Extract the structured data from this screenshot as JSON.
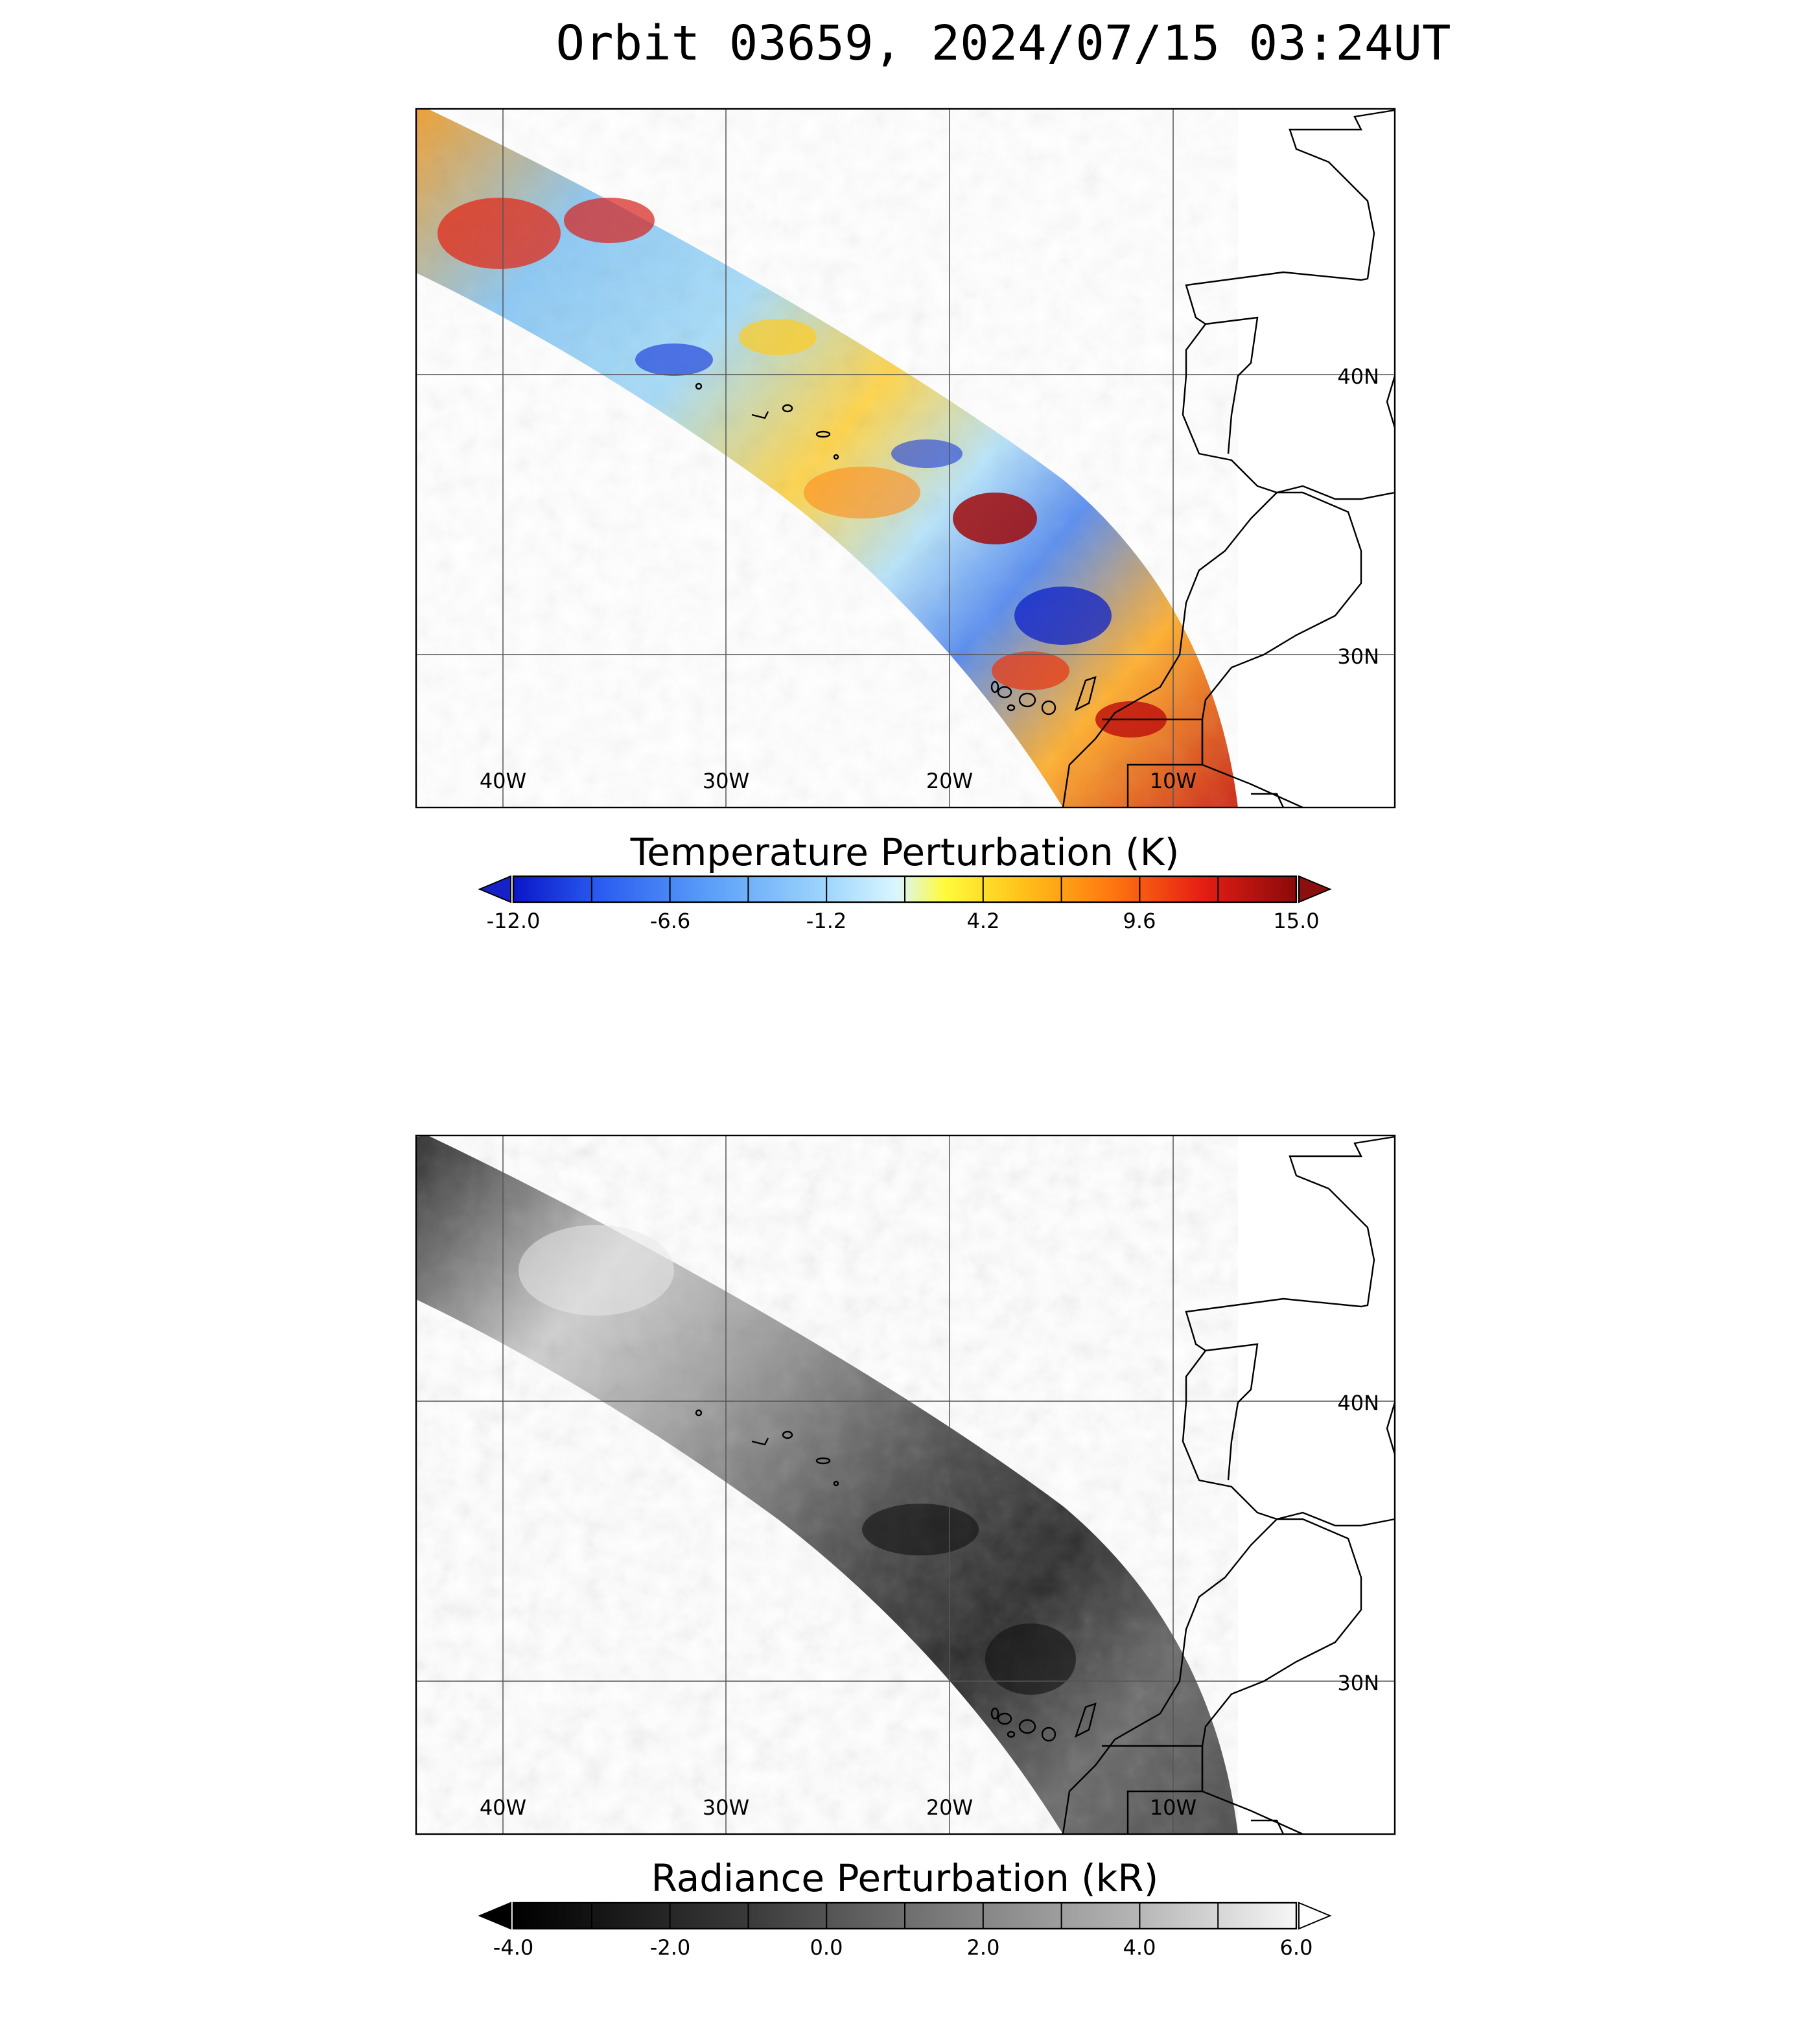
{
  "title": "Orbit 03659, 2024/07/15 03:24UT",
  "panels": [
    {
      "id": "temperature",
      "colorbar": {
        "title": "Temperature Perturbation (K)",
        "ticks": [
          "-12.0",
          "-6.6",
          "-1.2",
          "4.2",
          "9.6",
          "15.0"
        ],
        "colormap": [
          "#0a16c8",
          "#2a5cf0",
          "#5a9ef8",
          "#9fd6fc",
          "#d9f6ff",
          "#fffb3c",
          "#ffc21a",
          "#ff7a10",
          "#e61e14",
          "#8a0a0a"
        ],
        "extend_low_color": "#1622c8",
        "extend_high_color": "#8a0f0f"
      }
    },
    {
      "id": "radiance",
      "colorbar": {
        "title": "Radiance Perturbation (kR)",
        "ticks": [
          "-4.0",
          "-2.0",
          "0.0",
          "2.0",
          "4.0",
          "6.0"
        ],
        "colormap": [
          "#000000",
          "#3a3a3a",
          "#7a7a7a",
          "#b6b6b6",
          "#f6f6f6"
        ],
        "extend_low_color": "#000000",
        "extend_high_color": "#ffffff"
      }
    }
  ],
  "map": {
    "lon_labels": [
      "40W",
      "30W",
      "20W",
      "10W"
    ],
    "lat_labels": [
      "40N",
      "30N"
    ]
  }
}
